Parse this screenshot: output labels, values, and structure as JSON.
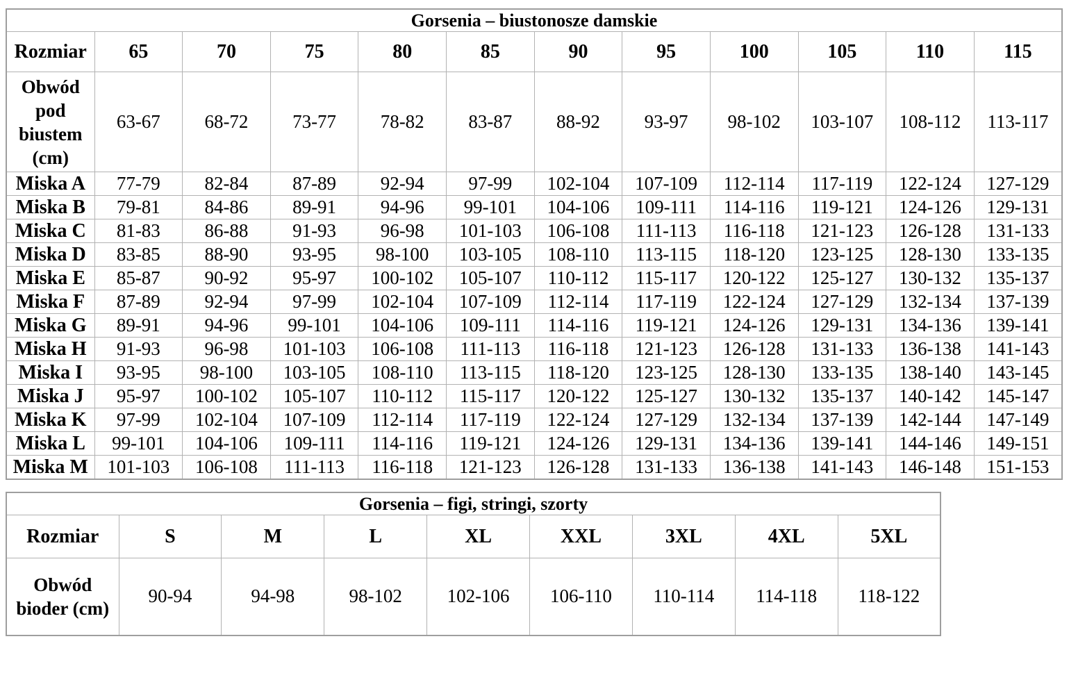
{
  "page": {
    "background": "#ffffff",
    "border_color": "#b2b2b2",
    "text_color": "#000000"
  },
  "bra_table": {
    "title": "Gorsenia – biustonosze damskie",
    "row_header_label": "Rozmiar",
    "sizes": [
      "65",
      "70",
      "75",
      "80",
      "85",
      "90",
      "95",
      "100",
      "105",
      "110",
      "115"
    ],
    "underbust_label": "Obwód pod biustem (cm)",
    "underbust_values": [
      "63-67",
      "68-72",
      "73-77",
      "78-82",
      "83-87",
      "88-92",
      "93-97",
      "98-102",
      "103-107",
      "108-112",
      "113-117"
    ],
    "cup_rows": [
      {
        "label": "Miska A",
        "values": [
          "77-79",
          "82-84",
          "87-89",
          "92-94",
          "97-99",
          "102-104",
          "107-109",
          "112-114",
          "117-119",
          "122-124",
          "127-129"
        ]
      },
      {
        "label": "Miska B",
        "values": [
          "79-81",
          "84-86",
          "89-91",
          "94-96",
          "99-101",
          "104-106",
          "109-111",
          "114-116",
          "119-121",
          "124-126",
          "129-131"
        ]
      },
      {
        "label": "Miska C",
        "values": [
          "81-83",
          "86-88",
          "91-93",
          "96-98",
          "101-103",
          "106-108",
          "111-113",
          "116-118",
          "121-123",
          "126-128",
          "131-133"
        ]
      },
      {
        "label": "Miska D",
        "values": [
          "83-85",
          "88-90",
          "93-95",
          "98-100",
          "103-105",
          "108-110",
          "113-115",
          "118-120",
          "123-125",
          "128-130",
          "133-135"
        ]
      },
      {
        "label": "Miska E",
        "values": [
          "85-87",
          "90-92",
          "95-97",
          "100-102",
          "105-107",
          "110-112",
          "115-117",
          "120-122",
          "125-127",
          "130-132",
          "135-137"
        ]
      },
      {
        "label": "Miska F",
        "values": [
          "87-89",
          "92-94",
          "97-99",
          "102-104",
          "107-109",
          "112-114",
          "117-119",
          "122-124",
          "127-129",
          "132-134",
          "137-139"
        ]
      },
      {
        "label": "Miska G",
        "values": [
          "89-91",
          "94-96",
          "99-101",
          "104-106",
          "109-111",
          "114-116",
          "119-121",
          "124-126",
          "129-131",
          "134-136",
          "139-141"
        ]
      },
      {
        "label": "Miska H",
        "values": [
          "91-93",
          "96-98",
          "101-103",
          "106-108",
          "111-113",
          "116-118",
          "121-123",
          "126-128",
          "131-133",
          "136-138",
          "141-143"
        ]
      },
      {
        "label": "Miska I",
        "values": [
          "93-95",
          "98-100",
          "103-105",
          "108-110",
          "113-115",
          "118-120",
          "123-125",
          "128-130",
          "133-135",
          "138-140",
          "143-145"
        ]
      },
      {
        "label": "Miska J",
        "values": [
          "95-97",
          "100-102",
          "105-107",
          "110-112",
          "115-117",
          "120-122",
          "125-127",
          "130-132",
          "135-137",
          "140-142",
          "145-147"
        ]
      },
      {
        "label": "Miska K",
        "values": [
          "97-99",
          "102-104",
          "107-109",
          "112-114",
          "117-119",
          "122-124",
          "127-129",
          "132-134",
          "137-139",
          "142-144",
          "147-149"
        ]
      },
      {
        "label": "Miska L",
        "values": [
          "99-101",
          "104-106",
          "109-111",
          "114-116",
          "119-121",
          "124-126",
          "129-131",
          "134-136",
          "139-141",
          "144-146",
          "149-151"
        ]
      },
      {
        "label": "Miska M",
        "values": [
          "101-103",
          "106-108",
          "111-113",
          "116-118",
          "121-123",
          "126-128",
          "131-133",
          "136-138",
          "141-143",
          "146-148",
          "151-153"
        ]
      }
    ]
  },
  "brief_table": {
    "title": "Gorsenia – figi, stringi, szorty",
    "row_header_label": "Rozmiar",
    "sizes": [
      "S",
      "M",
      "L",
      "XL",
      "XXL",
      "3XL",
      "4XL",
      "5XL"
    ],
    "hip_label": "Obwód bioder (cm)",
    "hip_values": [
      "90-94",
      "94-98",
      "98-102",
      "102-106",
      "106-110",
      "110-114",
      "114-118",
      "118-122"
    ]
  }
}
